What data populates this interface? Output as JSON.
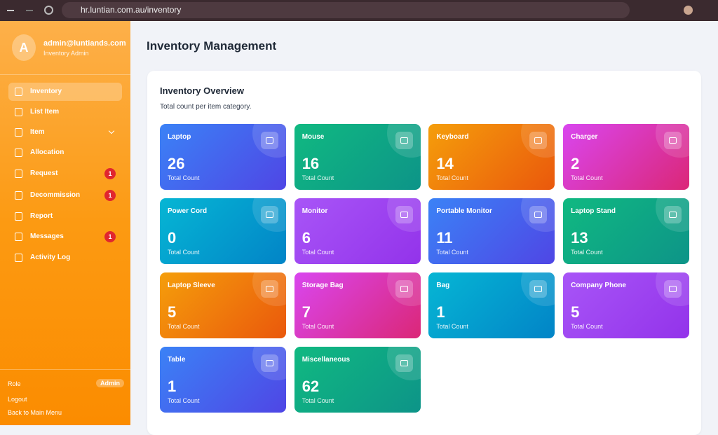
{
  "browser": {
    "url": "hr.luntian.com.au/inventory"
  },
  "sidebar": {
    "avatar": "A",
    "email": "admin@luntiands.com",
    "role_title": "Inventory Admin",
    "nav": [
      {
        "label": "Inventory"
      },
      {
        "label": "List Item"
      },
      {
        "label": "Item"
      },
      {
        "label": "Allocation"
      },
      {
        "label": "Request",
        "badge": 1
      },
      {
        "label": "Decommission",
        "badge": 1
      },
      {
        "label": "Report"
      },
      {
        "label": "Messages",
        "badge": 1
      },
      {
        "label": "Activity Log"
      }
    ],
    "footer": {
      "role_label": "Role",
      "role_value": "Admin",
      "logout": "Logout",
      "back": "Back to Main Menu"
    }
  },
  "main": {
    "title": "Inventory Management",
    "panel": {
      "title": "Inventory Overview",
      "subtitle": "Total count per item category.",
      "count_label": "Total Count",
      "cards": [
        {
          "name": "Laptop",
          "count": 26
        },
        {
          "name": "Mouse",
          "count": 16
        },
        {
          "name": "Keyboard",
          "count": 14
        },
        {
          "name": "Charger",
          "count": 2
        },
        {
          "name": "Power Cord",
          "count": 0
        },
        {
          "name": "Monitor",
          "count": 6
        },
        {
          "name": "Portable Monitor",
          "count": 11
        },
        {
          "name": "Laptop Stand",
          "count": 13
        },
        {
          "name": "Laptop Sleeve",
          "count": 5
        },
        {
          "name": "Storage Bag",
          "count": 7
        },
        {
          "name": "Bag",
          "count": 1
        },
        {
          "name": "Company Phone",
          "count": 5
        },
        {
          "name": "Table",
          "count": 1
        },
        {
          "name": "Miscellaneous",
          "count": 62
        }
      ]
    }
  }
}
